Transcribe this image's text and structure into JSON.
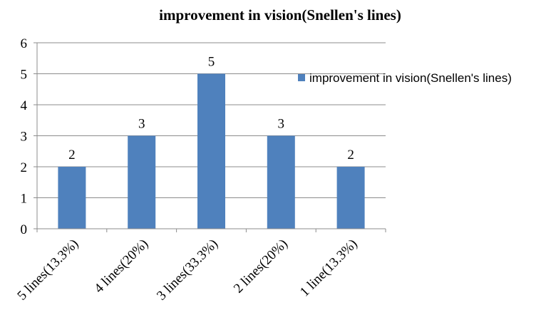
{
  "chart_data": {
    "type": "bar",
    "title": "improvement in vision(Snellen's lines)",
    "categories": [
      "5 lines(13.3%)",
      "4 lines(20%)",
      "3 lines(33.3%)",
      "2 lines(20%)",
      "1 line(13.3%)"
    ],
    "series": [
      {
        "name": "improvement in vision(Snellen's lines)",
        "values": [
          2,
          3,
          5,
          3,
          2
        ],
        "color": "#4f81bd"
      }
    ],
    "data_labels": [
      "2",
      "3",
      "5",
      "3",
      "2"
    ],
    "yticks": [
      "0",
      "1",
      "2",
      "3",
      "4",
      "5",
      "6"
    ],
    "ylim": [
      0,
      6
    ],
    "grid": true,
    "legend": "right"
  }
}
